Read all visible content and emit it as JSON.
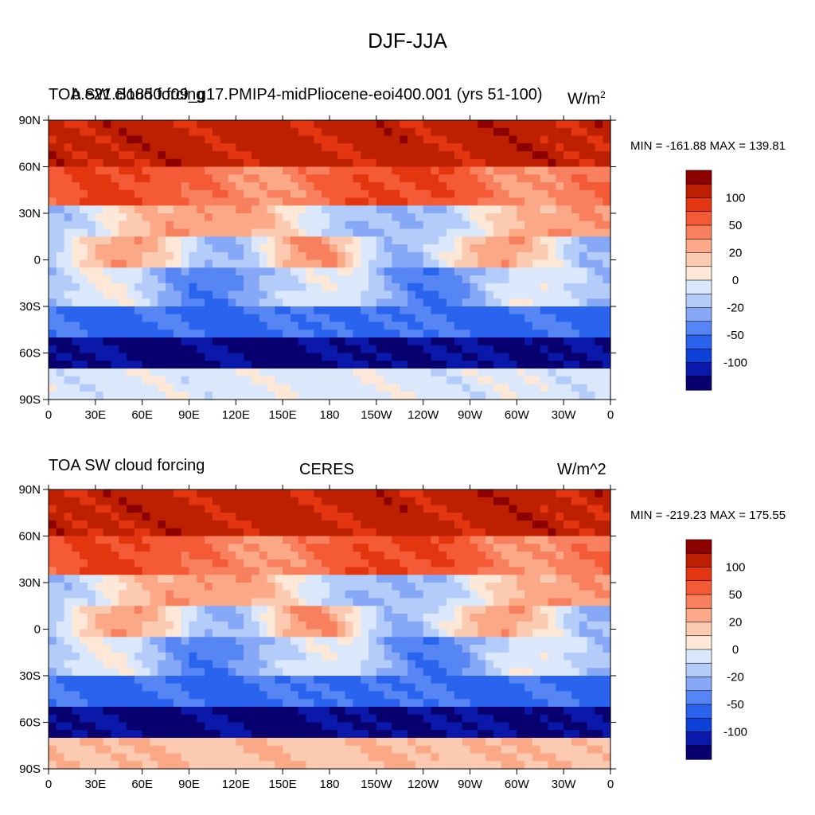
{
  "figure_title": "DJF-JJA",
  "palette": [
    "#08006e",
    "#0a19aa",
    "#0d3fd9",
    "#2a63ee",
    "#5586f3",
    "#87a8f7",
    "#b4ccf9",
    "#dbe8fb",
    "#fde7d6",
    "#fccab0",
    "#fba887",
    "#f9805e",
    "#f45a35",
    "#e3350f",
    "#bd2000",
    "#8c0000"
  ],
  "chart_data": [
    {
      "type": "heatmap",
      "left_label": "TOA SW cloud forcing",
      "center_label": "b.e21.B1850.f09_g17.PMIP4-midPliocene-eoi400.001 (yrs 51-100)",
      "right_label": "W/m",
      "right_label_sup": "2",
      "stats": "MIN = -161.88 MAX = 139.81",
      "x_ticks": [
        "0",
        "30E",
        "60E",
        "90E",
        "120E",
        "150E",
        "180",
        "150W",
        "120W",
        "90W",
        "60W",
        "30W",
        "0"
      ],
      "y_ticks": [
        "90N",
        "60N",
        "30N",
        "0",
        "30S",
        "60S",
        "90S"
      ],
      "colorbar_labels": [
        "100",
        "50",
        "20",
        "0",
        "-20",
        "-50",
        "-100"
      ]
    },
    {
      "type": "heatmap",
      "left_label": "TOA SW cloud forcing",
      "center_label": "CERES",
      "right_label": "W/m^2",
      "stats": "MIN = -219.23 MAX = 175.55",
      "x_ticks": [
        "0",
        "30E",
        "60E",
        "90E",
        "120E",
        "150E",
        "180",
        "150W",
        "120W",
        "90W",
        "60W",
        "30W",
        "0"
      ],
      "y_ticks": [
        "90N",
        "60N",
        "30N",
        "0",
        "30S",
        "60S",
        "90S"
      ],
      "colorbar_labels": [
        "100",
        "50",
        "20",
        "0",
        "-20",
        "-50",
        "-100"
      ]
    }
  ]
}
